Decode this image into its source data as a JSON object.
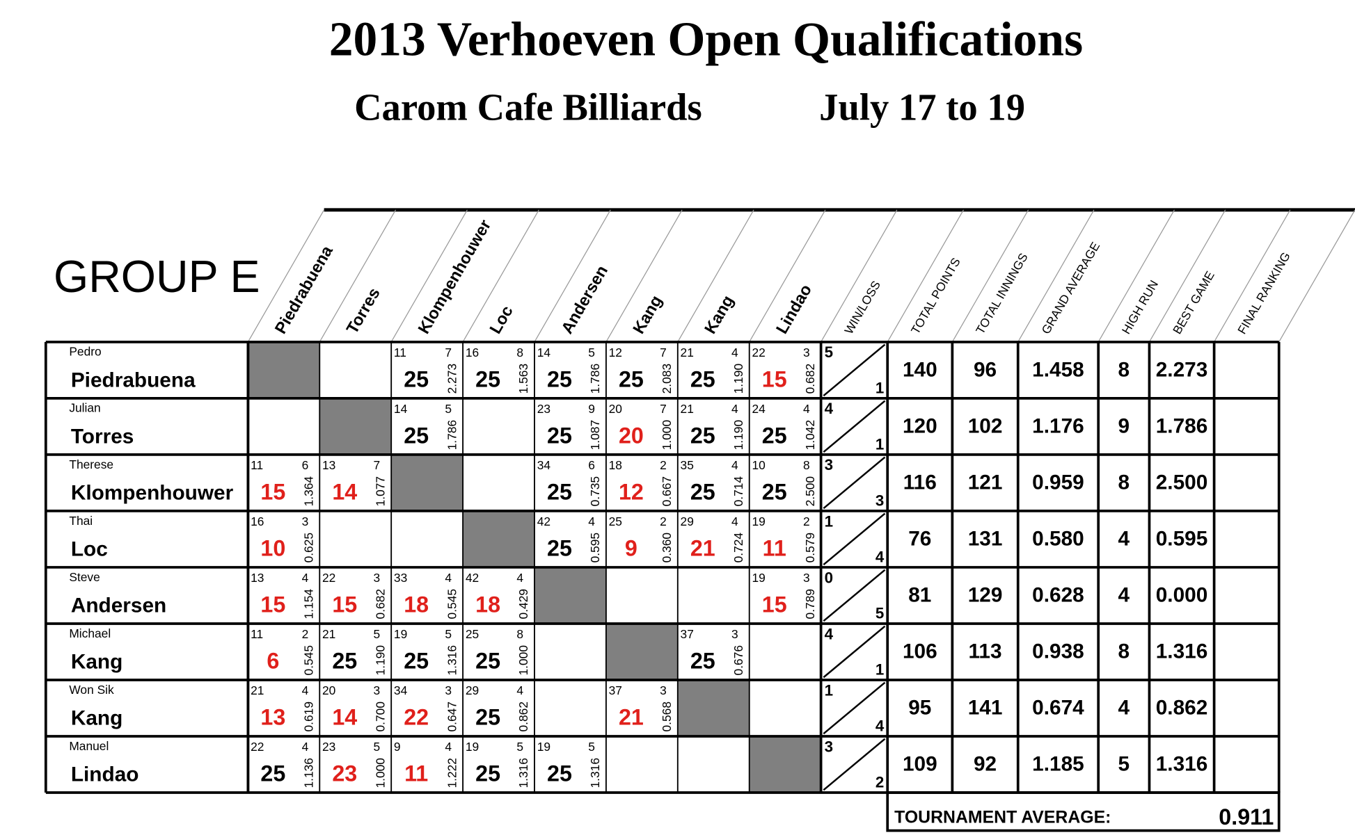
{
  "header": {
    "title": "2013 Verhoeven Open Qualifications",
    "venue": "Carom Cafe Billiards",
    "dates": "July 17 to 19"
  },
  "table": {
    "group": "GROUP E",
    "columns": [
      "Piedrabuena",
      "Torres",
      "Klompenhouwer",
      "Loc",
      "Andersen",
      "Kang",
      "Kang",
      "Lindao"
    ],
    "stat_columns": [
      "WIN/LOSS",
      "TOTAL POINTS",
      "TOTAL INNINGS",
      "GRAND AVERAGE",
      "HIGH RUN",
      "BEST GAME",
      "FINAL RANKING"
    ],
    "rows": [
      {
        "first": "Pedro",
        "last": "Piedrabuena",
        "cells": [
          null,
          null,
          {
            "a": 11,
            "b": 7,
            "points": 25,
            "avg": "2.273",
            "color": "#000"
          },
          {
            "a": 16,
            "b": 8,
            "points": 25,
            "avg": "1.563",
            "color": "#000"
          },
          {
            "a": 14,
            "b": 5,
            "points": 25,
            "avg": "1.786",
            "color": "#000"
          },
          {
            "a": 12,
            "b": 7,
            "points": 25,
            "avg": "2.083",
            "color": "#000"
          },
          {
            "a": 21,
            "b": 4,
            "points": 25,
            "avg": "1.190",
            "color": "#000"
          },
          {
            "a": 22,
            "b": 3,
            "points": 15,
            "avg": "0.682",
            "color": "#e0201b"
          }
        ],
        "wins": 5,
        "losses": 1,
        "total_points": 140,
        "total_innings": 96,
        "grand_average": "1.458",
        "high_run": 8,
        "best_game": "2.273"
      },
      {
        "first": "Julian",
        "last": "Torres",
        "cells": [
          null,
          null,
          {
            "a": 14,
            "b": 5,
            "points": 25,
            "avg": "1.786",
            "color": "#000"
          },
          null,
          {
            "a": 23,
            "b": 9,
            "points": 25,
            "avg": "1.087",
            "color": "#000"
          },
          {
            "a": 20,
            "b": 7,
            "points": 20,
            "avg": "1.000",
            "color": "#e0201b"
          },
          {
            "a": 21,
            "b": 4,
            "points": 25,
            "avg": "1.190",
            "color": "#000"
          },
          {
            "a": 24,
            "b": 4,
            "points": 25,
            "avg": "1.042",
            "color": "#000"
          }
        ],
        "wins": 4,
        "losses": 1,
        "total_points": 120,
        "total_innings": 102,
        "grand_average": "1.176",
        "high_run": 9,
        "best_game": "1.786"
      },
      {
        "first": "Therese",
        "last": "Klompenhouwer",
        "cells": [
          {
            "a": 11,
            "b": 6,
            "points": 15,
            "avg": "1.364",
            "color": "#e0201b"
          },
          {
            "a": 13,
            "b": 7,
            "points": 14,
            "avg": "1.077",
            "color": "#e0201b"
          },
          null,
          null,
          {
            "a": 34,
            "b": 6,
            "points": 25,
            "avg": "0.735",
            "color": "#000"
          },
          {
            "a": 18,
            "b": 2,
            "points": 12,
            "avg": "0.667",
            "color": "#e0201b"
          },
          {
            "a": 35,
            "b": 4,
            "points": 25,
            "avg": "0.714",
            "color": "#000"
          },
          {
            "a": 10,
            "b": 8,
            "points": 25,
            "avg": "2.500",
            "color": "#000"
          }
        ],
        "wins": 3,
        "losses": 3,
        "total_points": 116,
        "total_innings": 121,
        "grand_average": "0.959",
        "high_run": 8,
        "best_game": "2.500"
      },
      {
        "first": "Thai",
        "last": "Loc",
        "cells": [
          {
            "a": 16,
            "b": 3,
            "points": 10,
            "avg": "0.625",
            "color": "#e0201b"
          },
          null,
          null,
          null,
          {
            "a": 42,
            "b": 4,
            "points": 25,
            "avg": "0.595",
            "color": "#000"
          },
          {
            "a": 25,
            "b": 2,
            "points": 9,
            "avg": "0.360",
            "color": "#e0201b"
          },
          {
            "a": 29,
            "b": 4,
            "points": 21,
            "avg": "0.724",
            "color": "#e0201b"
          },
          {
            "a": 19,
            "b": 2,
            "points": 11,
            "avg": "0.579",
            "color": "#e0201b"
          }
        ],
        "wins": 1,
        "losses": 4,
        "total_points": 76,
        "total_innings": 131,
        "grand_average": "0.580",
        "high_run": 4,
        "best_game": "0.595"
      },
      {
        "first": "Steve",
        "last": "Andersen",
        "cells": [
          {
            "a": 13,
            "b": 4,
            "points": 15,
            "avg": "1.154",
            "color": "#e0201b"
          },
          {
            "a": 22,
            "b": 3,
            "points": 15,
            "avg": "0.682",
            "color": "#e0201b"
          },
          {
            "a": 33,
            "b": 4,
            "points": 18,
            "avg": "0.545",
            "color": "#e0201b"
          },
          {
            "a": 42,
            "b": 4,
            "points": 18,
            "avg": "0.429",
            "color": "#e0201b"
          },
          null,
          null,
          null,
          {
            "a": 19,
            "b": 3,
            "points": 15,
            "avg": "0.789",
            "color": "#e0201b"
          }
        ],
        "wins": 0,
        "losses": 5,
        "total_points": 81,
        "total_innings": 129,
        "grand_average": "0.628",
        "high_run": 4,
        "best_game": "0.000"
      },
      {
        "first": "Michael",
        "last": "Kang",
        "cells": [
          {
            "a": 11,
            "b": 2,
            "points": 6,
            "avg": "0.545",
            "color": "#e0201b"
          },
          {
            "a": 21,
            "b": 5,
            "points": 25,
            "avg": "1.190",
            "color": "#000"
          },
          {
            "a": 19,
            "b": 5,
            "points": 25,
            "avg": "1.316",
            "color": "#000"
          },
          {
            "a": 25,
            "b": 8,
            "points": 25,
            "avg": "1.000",
            "color": "#000"
          },
          null,
          null,
          {
            "a": 37,
            "b": 3,
            "points": 25,
            "avg": "0.676",
            "color": "#000"
          },
          null
        ],
        "wins": 4,
        "losses": 1,
        "total_points": 106,
        "total_innings": 113,
        "grand_average": "0.938",
        "high_run": 8,
        "best_game": "1.316"
      },
      {
        "first": "Won Sik",
        "last": "Kang",
        "cells": [
          {
            "a": 21,
            "b": 4,
            "points": 13,
            "avg": "0.619",
            "color": "#e0201b"
          },
          {
            "a": 20,
            "b": 3,
            "points": 14,
            "avg": "0.700",
            "color": "#e0201b"
          },
          {
            "a": 34,
            "b": 3,
            "points": 22,
            "avg": "0.647",
            "color": "#e0201b"
          },
          {
            "a": 29,
            "b": 4,
            "points": 25,
            "avg": "0.862",
            "color": "#000"
          },
          null,
          {
            "a": 37,
            "b": 3,
            "points": 21,
            "avg": "0.568",
            "color": "#e0201b"
          },
          null,
          null
        ],
        "wins": 1,
        "losses": 4,
        "total_points": 95,
        "total_innings": 141,
        "grand_average": "0.674",
        "high_run": 4,
        "best_game": "0.862"
      },
      {
        "first": "Manuel",
        "last": "Lindao",
        "cells": [
          {
            "a": 22,
            "b": 4,
            "points": 25,
            "avg": "1.136",
            "color": "#000"
          },
          {
            "a": 23,
            "b": 5,
            "points": 23,
            "avg": "1.000",
            "color": "#e0201b"
          },
          {
            "a": 9,
            "b": 4,
            "points": 11,
            "avg": "1.222",
            "color": "#e0201b"
          },
          {
            "a": 19,
            "b": 5,
            "points": 25,
            "avg": "1.316",
            "color": "#000"
          },
          {
            "a": 19,
            "b": 5,
            "points": 25,
            "avg": "1.316",
            "color": "#000"
          },
          null,
          null,
          null
        ],
        "wins": 3,
        "losses": 2,
        "total_points": 109,
        "total_innings": 92,
        "grand_average": "1.185",
        "high_run": 5,
        "best_game": "1.316"
      }
    ],
    "tournament_average": {
      "label": "TOURNAMENT AVERAGE:",
      "value": "0.911"
    },
    "diagonal_color": "#808080"
  }
}
